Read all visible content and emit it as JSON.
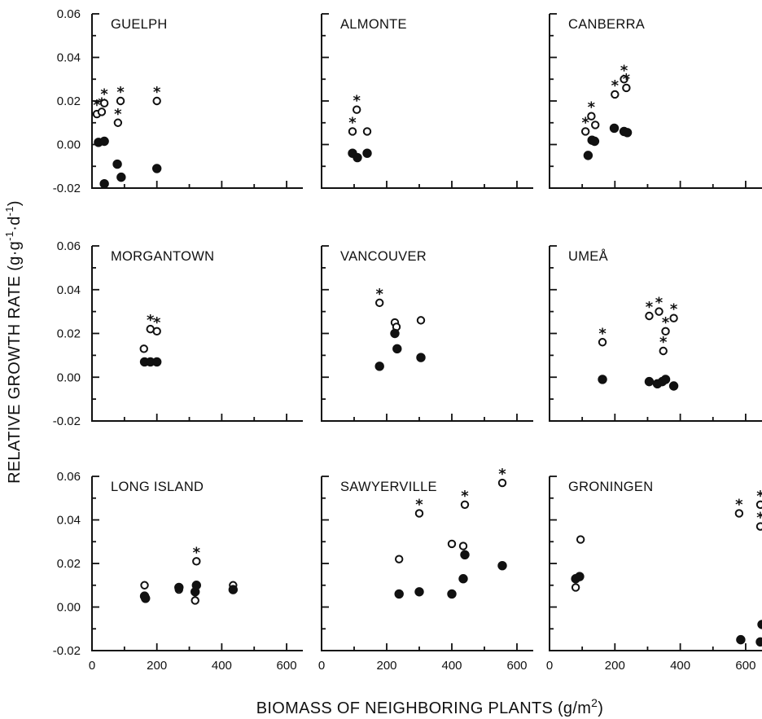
{
  "figure": {
    "ylabel_parts": [
      "RELATIVE GROWTH RATE (g",
      "·",
      "g",
      "-1",
      "·",
      "d",
      "-1",
      ")"
    ],
    "xlabel_parts": [
      "BIOMASS OF NEIGHBORING PLANTS (g/m",
      "2",
      ")"
    ],
    "y_ticks": [
      {
        "value": 0.06,
        "label": "0.06"
      },
      {
        "value": 0.04,
        "label": "0.04"
      },
      {
        "value": 0.02,
        "label": "0.02"
      },
      {
        "value": 0.0,
        "label": "0.00"
      },
      {
        "value": -0.02,
        "label": "-0.02"
      }
    ],
    "x_ticks": [
      {
        "value": 0,
        "label": "0"
      },
      {
        "value": 200,
        "label": "200"
      },
      {
        "value": 400,
        "label": "400"
      },
      {
        "value": 600,
        "label": "600"
      }
    ],
    "star_symbol": "*"
  },
  "chart_data": [
    {
      "type": "scatter",
      "title": "GUELPH",
      "xlim": [
        0,
        650
      ],
      "ylim": [
        -0.02,
        0.06
      ],
      "series": [
        {
          "marker": "open",
          "points": [
            [
              15,
              0.014
            ],
            [
              30,
              0.015
            ],
            [
              38,
              0.019
            ],
            [
              80,
              0.01
            ],
            [
              88,
              0.02
            ],
            [
              200,
              0.02
            ]
          ],
          "significant": [
            true,
            true,
            true,
            true,
            true,
            true
          ]
        },
        {
          "marker": "filled",
          "points": [
            [
              20,
              0.001
            ],
            [
              38,
              0.0015
            ],
            [
              78,
              -0.009
            ],
            [
              90,
              -0.015
            ],
            [
              200,
              -0.011
            ],
            [
              38,
              -0.018
            ]
          ]
        }
      ]
    },
    {
      "type": "scatter",
      "title": "ALMONTE",
      "xlim": [
        0,
        650
      ],
      "ylim": [
        -0.02,
        0.06
      ],
      "series": [
        {
          "marker": "open",
          "points": [
            [
              95,
              0.006
            ],
            [
              108,
              0.016
            ],
            [
              140,
              0.006
            ]
          ],
          "significant": [
            true,
            true,
            false
          ]
        },
        {
          "marker": "filled",
          "points": [
            [
              95,
              -0.004
            ],
            [
              110,
              -0.006
            ],
            [
              140,
              -0.004
            ]
          ]
        }
      ]
    },
    {
      "type": "scatter",
      "title": "CANBERRA",
      "xlim": [
        0,
        650
      ],
      "ylim": [
        -0.02,
        0.06
      ],
      "series": [
        {
          "marker": "open",
          "points": [
            [
              110,
              0.006
            ],
            [
              128,
              0.013
            ],
            [
              140,
              0.009
            ],
            [
              200,
              0.023
            ],
            [
              228,
              0.03
            ],
            [
              235,
              0.026
            ]
          ],
          "significant": [
            true,
            true,
            false,
            true,
            true,
            true
          ]
        },
        {
          "marker": "filled",
          "points": [
            [
              118,
              -0.005
            ],
            [
              130,
              0.002
            ],
            [
              138,
              0.0015
            ],
            [
              198,
              0.0075
            ],
            [
              228,
              0.006
            ],
            [
              238,
              0.0055
            ]
          ]
        }
      ]
    },
    {
      "type": "scatter",
      "title": "MORGANTOWN",
      "xlim": [
        0,
        650
      ],
      "ylim": [
        -0.02,
        0.06
      ],
      "series": [
        {
          "marker": "open",
          "points": [
            [
              160,
              0.013
            ],
            [
              180,
              0.022
            ],
            [
              200,
              0.021
            ]
          ],
          "significant": [
            false,
            true,
            true
          ]
        },
        {
          "marker": "filled",
          "points": [
            [
              162,
              0.007
            ],
            [
              180,
              0.007
            ],
            [
              200,
              0.007
            ]
          ]
        }
      ]
    },
    {
      "type": "scatter",
      "title": "VANCOUVER",
      "xlim": [
        0,
        650
      ],
      "ylim": [
        -0.02,
        0.06
      ],
      "series": [
        {
          "marker": "open",
          "points": [
            [
              178,
              0.034
            ],
            [
              225,
              0.025
            ],
            [
              230,
              0.023
            ],
            [
              305,
              0.026
            ]
          ],
          "significant": [
            true,
            false,
            false,
            false
          ]
        },
        {
          "marker": "filled",
          "points": [
            [
              178,
              0.005
            ],
            [
              225,
              0.02
            ],
            [
              232,
              0.013
            ],
            [
              305,
              0.009
            ]
          ]
        }
      ]
    },
    {
      "type": "scatter",
      "title": "UMEÅ",
      "xlim": [
        0,
        650
      ],
      "ylim": [
        -0.02,
        0.06
      ],
      "series": [
        {
          "marker": "open",
          "points": [
            [
              162,
              0.016
            ],
            [
              305,
              0.028
            ],
            [
              335,
              0.03
            ],
            [
              348,
              0.012
            ],
            [
              355,
              0.021
            ],
            [
              380,
              0.027
            ]
          ],
          "significant": [
            true,
            true,
            true,
            true,
            true,
            true
          ]
        },
        {
          "marker": "filled",
          "points": [
            [
              162,
              -0.001
            ],
            [
              305,
              -0.002
            ],
            [
              330,
              -0.003
            ],
            [
              345,
              -0.002
            ],
            [
              355,
              -0.001
            ],
            [
              380,
              -0.004
            ]
          ]
        }
      ]
    },
    {
      "type": "scatter",
      "title": "LONG ISLAND",
      "xlim": [
        0,
        650
      ],
      "ylim": [
        -0.02,
        0.06
      ],
      "series": [
        {
          "marker": "open",
          "points": [
            [
              162,
              0.01
            ],
            [
              268,
              0.008
            ],
            [
              318,
              0.003
            ],
            [
              322,
              0.021
            ],
            [
              435,
              0.01
            ]
          ],
          "significant": [
            false,
            false,
            false,
            true,
            false
          ]
        },
        {
          "marker": "filled",
          "points": [
            [
              162,
              0.005
            ],
            [
              165,
              0.004
            ],
            [
              268,
              0.009
            ],
            [
              318,
              0.007
            ],
            [
              322,
              0.01
            ],
            [
              435,
              0.008
            ]
          ]
        }
      ]
    },
    {
      "type": "scatter",
      "title": "SAWYERVILLE",
      "xlim": [
        0,
        650
      ],
      "ylim": [
        -0.02,
        0.06
      ],
      "series": [
        {
          "marker": "open",
          "points": [
            [
              238,
              0.022
            ],
            [
              300,
              0.043
            ],
            [
              400,
              0.029
            ],
            [
              435,
              0.028
            ],
            [
              440,
              0.047
            ],
            [
              555,
              0.057
            ]
          ],
          "significant": [
            false,
            true,
            false,
            false,
            true,
            true
          ]
        },
        {
          "marker": "filled",
          "points": [
            [
              238,
              0.006
            ],
            [
              300,
              0.007
            ],
            [
              400,
              0.006
            ],
            [
              435,
              0.013
            ],
            [
              440,
              0.024
            ],
            [
              555,
              0.019
            ]
          ]
        }
      ]
    },
    {
      "type": "scatter",
      "title": "GRONINGEN",
      "xlim": [
        0,
        650
      ],
      "ylim": [
        -0.02,
        0.06
      ],
      "series": [
        {
          "marker": "open",
          "points": [
            [
              80,
              0.009
            ],
            [
              95,
              0.031
            ],
            [
              580,
              0.043
            ],
            [
              645,
              0.047
            ],
            [
              645,
              0.037
            ]
          ],
          "significant": [
            false,
            false,
            true,
            true,
            true
          ]
        },
        {
          "marker": "filled",
          "points": [
            [
              80,
              0.013
            ],
            [
              92,
              0.014
            ],
            [
              585,
              -0.015
            ],
            [
              645,
              -0.016
            ],
            [
              650,
              -0.008
            ]
          ]
        }
      ]
    }
  ]
}
